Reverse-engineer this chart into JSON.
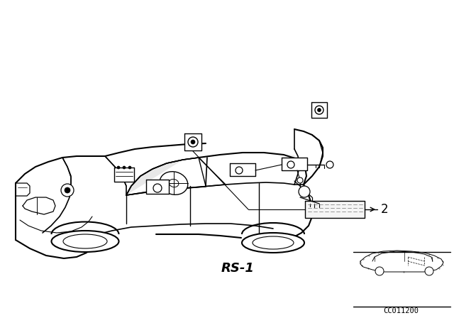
{
  "background_color": "#ffffff",
  "diagram_code": "CC011200",
  "label_rs1": "RS-1",
  "label_2": "2",
  "fig_width": 6.4,
  "fig_height": 4.48,
  "dpi": 100
}
